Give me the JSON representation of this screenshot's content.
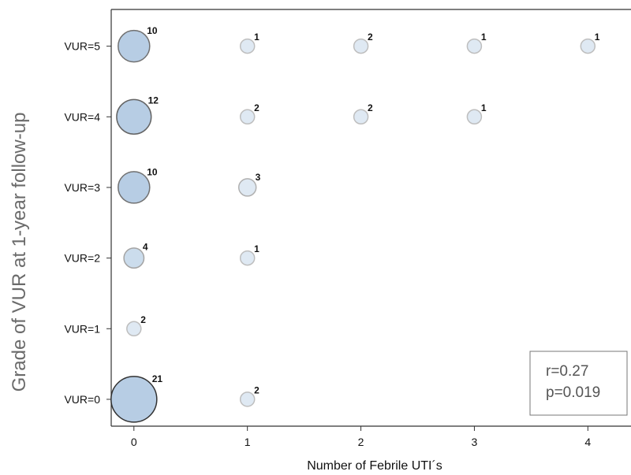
{
  "chart_data": {
    "type": "scatter",
    "subtype": "bubble",
    "xlabel": "Number of Febrile UTI´s",
    "ylabel": "Grade of VUR at 1-year follow-up",
    "x_ticks": [
      0,
      1,
      2,
      3,
      4
    ],
    "x_tick_labels": [
      "0",
      "1",
      "2",
      "3",
      "4"
    ],
    "y_ticks": [
      0,
      1,
      2,
      3,
      4,
      5
    ],
    "y_tick_labels": [
      "VUR=0",
      "VUR=1",
      "VUR=2",
      "VUR=3",
      "VUR=4",
      "VUR=5"
    ],
    "xlim": [
      -0.2,
      4.38
    ],
    "ylim": [
      -0.38,
      5.52
    ],
    "grid": false,
    "bubble_color": "#b7cde4",
    "points": [
      {
        "x": 0,
        "y": 5,
        "count": 10
      },
      {
        "x": 1,
        "y": 5,
        "count": 1
      },
      {
        "x": 2,
        "y": 5,
        "count": 2
      },
      {
        "x": 3,
        "y": 5,
        "count": 1
      },
      {
        "x": 4,
        "y": 5,
        "count": 1
      },
      {
        "x": 0,
        "y": 4,
        "count": 12
      },
      {
        "x": 1,
        "y": 4,
        "count": 2
      },
      {
        "x": 2,
        "y": 4,
        "count": 2
      },
      {
        "x": 3,
        "y": 4,
        "count": 1
      },
      {
        "x": 0,
        "y": 3,
        "count": 10
      },
      {
        "x": 1,
        "y": 3,
        "count": 3
      },
      {
        "x": 0,
        "y": 2,
        "count": 4
      },
      {
        "x": 1,
        "y": 2,
        "count": 1
      },
      {
        "x": 0,
        "y": 1,
        "count": 2
      },
      {
        "x": 0,
        "y": 0,
        "count": 21
      },
      {
        "x": 1,
        "y": 0,
        "count": 2
      }
    ],
    "annotation": {
      "lines": [
        "r=0.27",
        "p=0.019"
      ],
      "placement": "bottom-right"
    }
  }
}
